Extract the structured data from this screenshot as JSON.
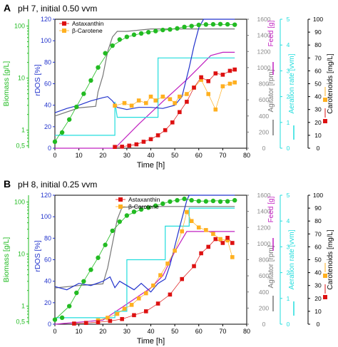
{
  "colors": {
    "biomass": "#22bb22",
    "rdos": "#2233cc",
    "agitator": "#777777",
    "feed": "#c020c0",
    "aeration": "#22dddd",
    "astaxanthin": "#dd1111",
    "carotene": "#ffb020",
    "axis": "#000000"
  },
  "chart_data": [
    {
      "panel_letter": "A",
      "title": "pH 7, initial 0.50 vvm",
      "type": "line",
      "xlabel": "Time [h]",
      "xlim": [
        0,
        80
      ],
      "x_ticks": [
        "0",
        "10",
        "20",
        "30",
        "40",
        "50",
        "60",
        "70",
        "80"
      ],
      "axes": {
        "biomass": {
          "label": "Biomass [g/L]",
          "scale": "log",
          "ticks": [
            "0,5",
            "1",
            "10",
            "100"
          ]
        },
        "rdos": {
          "label": "rDOS [%]",
          "lim": [
            0,
            120
          ],
          "ticks": [
            "0",
            "20",
            "40",
            "60",
            "80",
            "100",
            "120"
          ]
        },
        "agitator": {
          "label": "Agitator [rpm]",
          "lim": [
            0,
            1600
          ],
          "ticks": [
            "0",
            "200",
            "400",
            "600",
            "800",
            "1000",
            "1200",
            "1400",
            "1600"
          ]
        },
        "feed": {
          "label": "Feed [g]",
          "lim": [
            0,
            1600
          ],
          "ticks": [
            "0",
            "200",
            "400",
            "600",
            "800",
            "1000",
            "1200",
            "1400",
            "1600"
          ]
        },
        "aeration": {
          "label": "Aeration rate [vvm]",
          "lim": [
            0,
            5
          ],
          "ticks": [
            "0",
            "1",
            "2",
            "3",
            "4",
            "5"
          ]
        },
        "carotenoids": {
          "label": "Carotenoids [mg/L]",
          "lim": [
            0,
            100
          ],
          "ticks": [
            "0",
            "10",
            "20",
            "30",
            "40",
            "50",
            "60",
            "70",
            "80",
            "90",
            "100"
          ]
        }
      },
      "legend": {
        "position": "top-left",
        "entries": [
          "Astaxanthin",
          "β-Carotene"
        ]
      },
      "biomass_points": [
        [
          0,
          0.6
        ],
        [
          3,
          0.9
        ],
        [
          6,
          1.6
        ],
        [
          9,
          2.8
        ],
        [
          12,
          5
        ],
        [
          15,
          9
        ],
        [
          18,
          16
        ],
        [
          21,
          30
        ],
        [
          24,
          42
        ],
        [
          27,
          55
        ],
        [
          30,
          62
        ],
        [
          33,
          68
        ],
        [
          36,
          72
        ],
        [
          39,
          76
        ],
        [
          42,
          80
        ],
        [
          45,
          84
        ],
        [
          48,
          86
        ],
        [
          51,
          90
        ],
        [
          54,
          96
        ],
        [
          57,
          100
        ],
        [
          60,
          105
        ],
        [
          63,
          107
        ],
        [
          66,
          108
        ],
        [
          69,
          109
        ],
        [
          72,
          108
        ],
        [
          75,
          106
        ]
      ],
      "biomass_line": [
        [
          0,
          0.6
        ],
        [
          6,
          1.6
        ],
        [
          12,
          5
        ],
        [
          18,
          16
        ],
        [
          24,
          42
        ],
        [
          30,
          62
        ],
        [
          36,
          72
        ],
        [
          42,
          80
        ],
        [
          48,
          86
        ],
        [
          54,
          96
        ],
        [
          60,
          105
        ],
        [
          66,
          108
        ],
        [
          75,
          106
        ]
      ],
      "rdos": [
        [
          0,
          33
        ],
        [
          5,
          37
        ],
        [
          10,
          40
        ],
        [
          15,
          44
        ],
        [
          20,
          47
        ],
        [
          22,
          48
        ],
        [
          24,
          44
        ],
        [
          26,
          38
        ],
        [
          30,
          36
        ],
        [
          35,
          38
        ],
        [
          40,
          38
        ],
        [
          45,
          37
        ],
        [
          50,
          40
        ],
        [
          53,
          48
        ],
        [
          56,
          75
        ],
        [
          58,
          95
        ],
        [
          60,
          112
        ],
        [
          62,
          120
        ],
        [
          75,
          120
        ]
      ],
      "agitator": [
        [
          0,
          400
        ],
        [
          10,
          500
        ],
        [
          17,
          520
        ],
        [
          18,
          700
        ],
        [
          20,
          900
        ],
        [
          22,
          1200
        ],
        [
          24,
          1380
        ],
        [
          26,
          1450
        ],
        [
          30,
          1450
        ],
        [
          40,
          1480
        ],
        [
          60,
          1480
        ],
        [
          75,
          1480
        ]
      ],
      "feed": [
        [
          0,
          0
        ],
        [
          25,
          0
        ],
        [
          35,
          300
        ],
        [
          45,
          580
        ],
        [
          55,
          850
        ],
        [
          60,
          1000
        ],
        [
          65,
          1150
        ],
        [
          70,
          1190
        ],
        [
          75,
          1190
        ]
      ],
      "aeration": [
        [
          0,
          0.5
        ],
        [
          25,
          0.5
        ],
        [
          25,
          1.8
        ],
        [
          26,
          1.2
        ],
        [
          43,
          1.2
        ],
        [
          43,
          3.5
        ],
        [
          75,
          3.5
        ]
      ],
      "astaxanthin": [
        [
          25,
          1
        ],
        [
          28,
          1.2
        ],
        [
          31,
          2
        ],
        [
          34,
          3
        ],
        [
          37,
          5
        ],
        [
          40,
          7
        ],
        [
          43,
          10
        ],
        [
          46,
          14
        ],
        [
          49,
          20
        ],
        [
          52,
          28
        ],
        [
          55,
          36
        ],
        [
          58,
          47
        ],
        [
          61,
          55
        ],
        [
          64,
          52
        ],
        [
          67,
          58
        ],
        [
          70,
          57
        ],
        [
          73,
          60
        ],
        [
          75,
          61
        ]
      ],
      "carotene": [
        [
          25,
          33
        ],
        [
          29,
          35
        ],
        [
          32,
          33
        ],
        [
          35,
          37
        ],
        [
          38,
          35
        ],
        [
          40,
          40
        ],
        [
          42,
          37
        ],
        [
          45,
          40
        ],
        [
          48,
          38
        ],
        [
          50,
          35
        ],
        [
          52,
          40
        ],
        [
          55,
          42
        ],
        [
          58,
          47
        ],
        [
          61,
          53
        ],
        [
          64,
          42
        ],
        [
          67,
          30
        ],
        [
          70,
          48
        ],
        [
          73,
          50
        ],
        [
          75,
          51
        ]
      ]
    },
    {
      "panel_letter": "B",
      "title": "pH 8, initial 0.25 vvm",
      "type": "line",
      "xlabel": "Time [h]",
      "xlim": [
        0,
        80
      ],
      "x_ticks": [
        "0",
        "10",
        "20",
        "30",
        "40",
        "50",
        "60",
        "70",
        "80"
      ],
      "axes": {
        "biomass": {
          "label": "Biomass [g/L]",
          "scale": "log",
          "ticks": [
            "0,5",
            "1",
            "10",
            "100"
          ]
        },
        "rdos": {
          "label": "rDOS [%]",
          "lim": [
            0,
            120
          ],
          "ticks": [
            "0",
            "20",
            "40",
            "60",
            "80",
            "100",
            "120"
          ]
        },
        "agitator": {
          "label": "Agitator [rpm]",
          "lim": [
            0,
            1600
          ],
          "ticks": [
            "0",
            "200",
            "400",
            "600",
            "800",
            "1000",
            "1200",
            "1400",
            "1600"
          ]
        },
        "feed": {
          "label": "Feed [g]",
          "lim": [
            0,
            1600
          ],
          "ticks": [
            "0",
            "200",
            "400",
            "600",
            "800",
            "1000",
            "1200",
            "1400",
            "1600"
          ]
        },
        "aeration": {
          "label": "Aeration rate [vvm]",
          "lim": [
            0,
            5
          ],
          "ticks": [
            "0",
            "1",
            "2",
            "3",
            "4",
            "5"
          ]
        },
        "carotenoids": {
          "label": "Carotenoids [mg/L]",
          "lim": [
            0,
            100
          ],
          "ticks": [
            "0",
            "10",
            "20",
            "30",
            "40",
            "50",
            "60",
            "70",
            "80",
            "90",
            "100"
          ]
        }
      },
      "legend": {
        "position": "top-center",
        "entries": [
          "Astaxanthin",
          "β-Carotene"
        ]
      },
      "biomass_points": [
        [
          0,
          0.55
        ],
        [
          3,
          0.6
        ],
        [
          6,
          1.0
        ],
        [
          9,
          1.8
        ],
        [
          12,
          3.0
        ],
        [
          15,
          5
        ],
        [
          18,
          8.5
        ],
        [
          21,
          15
        ],
        [
          24,
          28
        ],
        [
          27,
          42
        ],
        [
          30,
          55
        ],
        [
          33,
          65
        ],
        [
          36,
          72
        ],
        [
          39,
          78
        ],
        [
          42,
          85
        ],
        [
          45,
          93
        ],
        [
          48,
          102
        ],
        [
          51,
          108
        ],
        [
          54,
          115
        ],
        [
          57,
          108
        ],
        [
          60,
          104
        ],
        [
          63,
          103
        ],
        [
          66,
          105
        ],
        [
          69,
          102
        ],
        [
          72,
          103
        ],
        [
          75,
          108
        ]
      ],
      "biomass_line": [
        [
          0,
          0.55
        ],
        [
          6,
          1.0
        ],
        [
          12,
          3.0
        ],
        [
          18,
          8.5
        ],
        [
          24,
          28
        ],
        [
          30,
          55
        ],
        [
          36,
          72
        ],
        [
          42,
          85
        ],
        [
          48,
          102
        ],
        [
          54,
          115
        ],
        [
          60,
          104
        ],
        [
          66,
          105
        ],
        [
          75,
          108
        ]
      ],
      "rdos": [
        [
          0,
          35
        ],
        [
          5,
          32
        ],
        [
          10,
          38
        ],
        [
          15,
          36
        ],
        [
          20,
          40
        ],
        [
          23,
          44
        ],
        [
          25,
          34
        ],
        [
          27,
          40
        ],
        [
          30,
          36
        ],
        [
          33,
          32
        ],
        [
          36,
          38
        ],
        [
          40,
          30
        ],
        [
          43,
          38
        ],
        [
          46,
          42
        ],
        [
          48,
          55
        ],
        [
          52,
          90
        ],
        [
          55,
          115
        ],
        [
          56,
          120
        ],
        [
          75,
          120
        ]
      ],
      "agitator": [
        [
          0,
          450
        ],
        [
          10,
          480
        ],
        [
          20,
          500
        ],
        [
          22,
          700
        ],
        [
          24,
          1000
        ],
        [
          26,
          1300
        ],
        [
          28,
          1450
        ],
        [
          35,
          1460
        ],
        [
          50,
          1460
        ],
        [
          75,
          1460
        ]
      ],
      "feed": [
        [
          0,
          0
        ],
        [
          20,
          50
        ],
        [
          25,
          150
        ],
        [
          30,
          250
        ],
        [
          35,
          350
        ],
        [
          40,
          450
        ],
        [
          45,
          600
        ],
        [
          50,
          900
        ],
        [
          55,
          1150
        ],
        [
          75,
          1150
        ]
      ],
      "aeration": [
        [
          0,
          0.25
        ],
        [
          25,
          0.25
        ],
        [
          25,
          0.5
        ],
        [
          30,
          0.5
        ],
        [
          30,
          2.5
        ],
        [
          46,
          2.5
        ],
        [
          46,
          3.8
        ],
        [
          56,
          3.8
        ],
        [
          56,
          4.5
        ],
        [
          75,
          4.5
        ]
      ],
      "astaxanthin": [
        [
          8,
          0.5
        ],
        [
          13,
          1
        ],
        [
          18,
          1.5
        ],
        [
          23,
          2.5
        ],
        [
          28,
          4
        ],
        [
          33,
          7
        ],
        [
          38,
          10
        ],
        [
          43,
          16
        ],
        [
          48,
          23
        ],
        [
          53,
          35
        ],
        [
          58,
          45
        ],
        [
          61,
          55
        ],
        [
          64,
          60
        ],
        [
          67,
          66
        ],
        [
          70,
          63
        ],
        [
          72,
          67
        ],
        [
          74,
          63
        ]
      ],
      "carotene": [
        [
          18,
          3
        ],
        [
          22,
          5
        ],
        [
          26,
          8
        ],
        [
          29,
          12
        ],
        [
          32,
          15
        ],
        [
          35,
          20
        ],
        [
          38,
          24
        ],
        [
          41,
          30
        ],
        [
          44,
          38
        ],
        [
          47,
          47
        ],
        [
          50,
          57
        ],
        [
          53,
          72
        ],
        [
          55,
          87
        ],
        [
          57,
          80
        ],
        [
          60,
          75
        ],
        [
          63,
          73
        ],
        [
          66,
          70
        ],
        [
          69,
          66
        ],
        [
          72,
          65
        ],
        [
          74,
          52
        ]
      ]
    }
  ]
}
